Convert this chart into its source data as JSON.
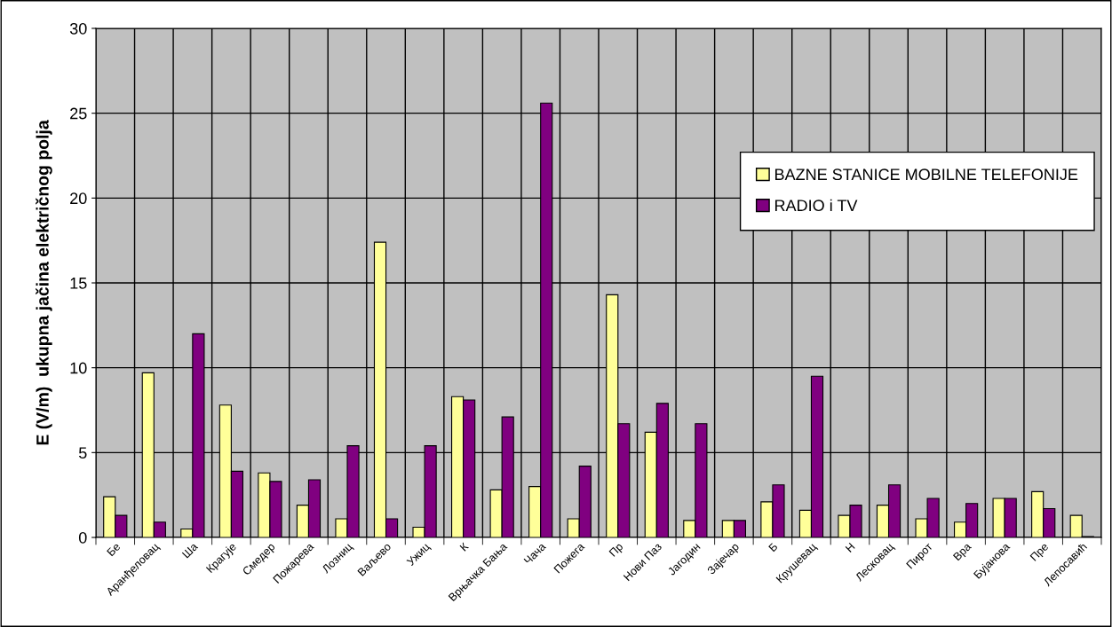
{
  "chart_data": {
    "type": "bar",
    "ylabel": "E (V/m)  ukupna jačina električnog polja",
    "categories": [
      "Бе",
      "Аранђеловац",
      "Ша",
      "Крагује",
      "Смедер",
      "Пожарева",
      "Лозниц",
      "Ваљево",
      "Ужиц",
      "К",
      "Врњачка Бања",
      "Чача",
      "Пожега",
      "Пр",
      "Нови Паз",
      "Јагодин",
      "Зајечар",
      "Б",
      "Крушевац",
      "Н",
      "Лесковац",
      "Пирот",
      "Вра",
      "Бујанова",
      "Пре",
      "Лепосавић"
    ],
    "series": [
      {
        "name": "BAZNE STANICE MOBILNE TELEFONIJE",
        "color": "#ffff99",
        "values": [
          2.4,
          9.7,
          0.5,
          7.8,
          3.8,
          1.9,
          1.1,
          17.4,
          0.6,
          8.3,
          2.8,
          3.0,
          1.1,
          14.3,
          6.2,
          1.0,
          1.0,
          2.1,
          1.6,
          1.3,
          1.9,
          1.1,
          0.9,
          2.3,
          2.7,
          1.3
        ]
      },
      {
        "name": "RADIO i TV",
        "color": "#800080",
        "values": [
          1.3,
          0.9,
          12.0,
          3.9,
          3.3,
          3.4,
          5.4,
          1.1,
          5.4,
          8.1,
          7.1,
          25.6,
          4.2,
          6.7,
          7.9,
          6.7,
          1.0,
          3.1,
          9.5,
          1.9,
          3.1,
          2.3,
          2.0,
          2.3,
          1.7,
          0.05
        ]
      }
    ],
    "ylim": [
      0,
      30
    ],
    "yticks": [
      0,
      5,
      10,
      15,
      20,
      25,
      30
    ],
    "grid": true,
    "legend": "top right"
  }
}
